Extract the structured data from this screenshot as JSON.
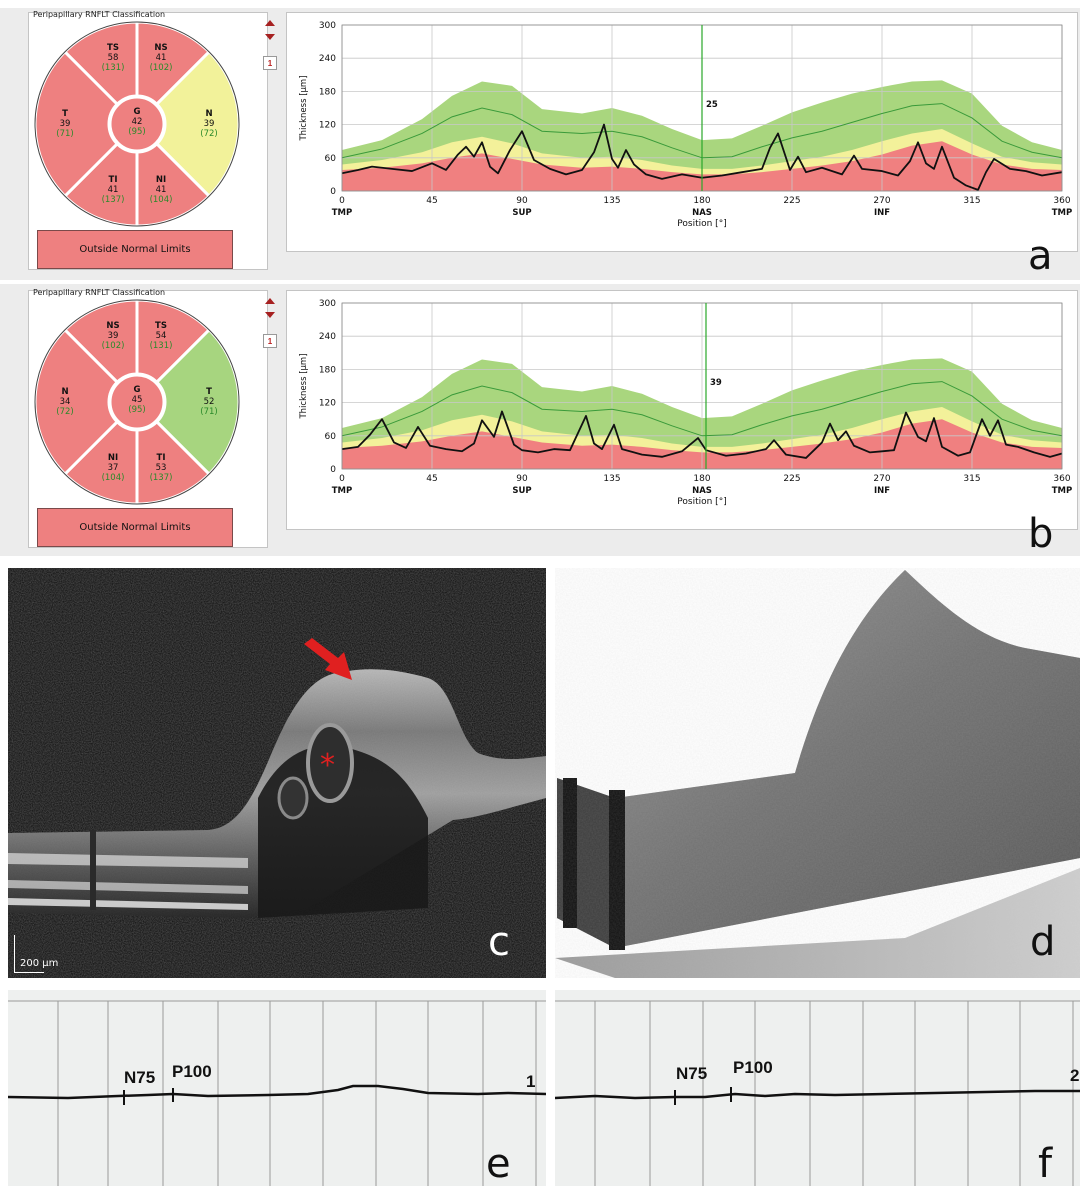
{
  "panels": [
    {
      "id": "a",
      "letter": "a",
      "title": "Peripapillary RNFLT Classification",
      "nav_number": "1",
      "status": "Outside Normal Limits",
      "cursor_label": "25",
      "cursor_position": 180,
      "sectors": {
        "upper_left": {
          "name": "TS",
          "value": "58",
          "normal": "(131)",
          "color": "#ee8080"
        },
        "upper_right": {
          "name": "NS",
          "value": "41",
          "normal": "(102)",
          "color": "#ee8080"
        },
        "left": {
          "name": "T",
          "value": "39",
          "normal": "(71)",
          "color": "#ee8080"
        },
        "right": {
          "name": "N",
          "value": "39",
          "normal": "(72)",
          "color": "#f2f29a"
        },
        "lower_left": {
          "name": "TI",
          "value": "41",
          "normal": "(137)",
          "color": "#ee8080"
        },
        "lower_right": {
          "name": "NI",
          "value": "41",
          "normal": "(104)",
          "color": "#ee8080"
        },
        "center": {
          "name": "G",
          "value": "42",
          "normal": "(95)",
          "color": "#ee8080"
        }
      }
    },
    {
      "id": "b",
      "letter": "b",
      "title": "Peripapillary RNFLT Classification",
      "nav_number": "1",
      "status": "Outside Normal Limits",
      "cursor_label": "39",
      "cursor_position": 182,
      "sectors": {
        "upper_left": {
          "name": "NS",
          "value": "39",
          "normal": "(102)",
          "color": "#ee8080"
        },
        "upper_right": {
          "name": "TS",
          "value": "54",
          "normal": "(131)",
          "color": "#ee8080"
        },
        "left": {
          "name": "N",
          "value": "34",
          "normal": "(72)",
          "color": "#ee8080"
        },
        "right": {
          "name": "T",
          "value": "52",
          "normal": "(71)",
          "color": "#a7d57f"
        },
        "lower_left": {
          "name": "NI",
          "value": "37",
          "normal": "(104)",
          "color": "#ee8080"
        },
        "lower_right": {
          "name": "TI",
          "value": "53",
          "normal": "(137)",
          "color": "#ee8080"
        },
        "center": {
          "name": "G",
          "value": "45",
          "normal": "(95)",
          "color": "#ee8080"
        }
      }
    }
  ],
  "chart_data": [
    {
      "type": "line",
      "panel": "a",
      "ylabel": "Thickness [µm]",
      "xlabel": "Position [°]",
      "x_ticks": [
        0,
        45,
        90,
        135,
        180,
        225,
        270,
        315,
        360
      ],
      "y_ticks": [
        0,
        60,
        120,
        180,
        240,
        300
      ],
      "x_region_labels": [
        {
          "x": 0,
          "label": "TMP"
        },
        {
          "x": 90,
          "label": "SUP"
        },
        {
          "x": 180,
          "label": "NAS"
        },
        {
          "x": 270,
          "label": "INF"
        },
        {
          "x": 360,
          "label": "TMP"
        }
      ],
      "xlim": [
        0,
        360
      ],
      "ylim": [
        0,
        300
      ],
      "normative_x": [
        0,
        20,
        40,
        55,
        70,
        85,
        100,
        120,
        135,
        150,
        165,
        180,
        195,
        210,
        225,
        240,
        255,
        270,
        285,
        300,
        315,
        330,
        345,
        360
      ],
      "band_red_top": [
        38,
        42,
        50,
        60,
        68,
        58,
        48,
        42,
        44,
        40,
        34,
        30,
        30,
        34,
        40,
        46,
        54,
        66,
        82,
        90,
        66,
        48,
        40,
        38
      ],
      "band_yellow_top": [
        48,
        56,
        70,
        88,
        98,
        86,
        68,
        60,
        62,
        56,
        46,
        40,
        40,
        46,
        54,
        62,
        74,
        90,
        104,
        112,
        86,
        62,
        52,
        48
      ],
      "band_green_top": [
        74,
        92,
        130,
        172,
        198,
        190,
        148,
        140,
        150,
        136,
        112,
        92,
        95,
        118,
        142,
        160,
        176,
        188,
        198,
        200,
        176,
        118,
        88,
        74
      ],
      "mean_line": [
        60,
        76,
        104,
        134,
        150,
        138,
        108,
        104,
        108,
        98,
        78,
        60,
        62,
        80,
        96,
        108,
        124,
        140,
        154,
        158,
        132,
        90,
        70,
        60
      ],
      "measured_x": [
        0,
        8,
        15,
        25,
        35,
        45,
        52,
        58,
        62,
        66,
        70,
        74,
        78,
        84,
        90,
        96,
        104,
        112,
        120,
        126,
        131,
        135,
        138,
        142,
        146,
        152,
        160,
        170,
        180,
        190,
        200,
        210,
        214,
        218,
        224,
        228,
        232,
        240,
        250,
        256,
        260,
        270,
        278,
        284,
        288,
        292,
        296,
        300,
        306,
        312,
        318,
        322,
        326,
        334,
        342,
        350,
        360
      ],
      "measured_y": [
        32,
        38,
        44,
        40,
        36,
        50,
        38,
        66,
        80,
        62,
        88,
        44,
        32,
        74,
        108,
        56,
        40,
        30,
        38,
        70,
        120,
        58,
        42,
        74,
        48,
        30,
        22,
        30,
        24,
        28,
        34,
        40,
        78,
        104,
        38,
        62,
        34,
        42,
        30,
        64,
        40,
        36,
        28,
        54,
        88,
        50,
        40,
        80,
        24,
        10,
        2,
        34,
        58,
        40,
        36,
        28,
        34
      ]
    },
    {
      "type": "line",
      "panel": "b",
      "ylabel": "Thickness [µm]",
      "xlabel": "Position [°]",
      "x_ticks": [
        0,
        45,
        90,
        135,
        180,
        225,
        270,
        315,
        360
      ],
      "y_ticks": [
        0,
        60,
        120,
        180,
        240,
        300
      ],
      "x_region_labels": [
        {
          "x": 0,
          "label": "TMP"
        },
        {
          "x": 90,
          "label": "SUP"
        },
        {
          "x": 180,
          "label": "NAS"
        },
        {
          "x": 270,
          "label": "INF"
        },
        {
          "x": 360,
          "label": "TMP"
        }
      ],
      "xlim": [
        0,
        360
      ],
      "ylim": [
        0,
        300
      ],
      "normative_x": [
        0,
        20,
        40,
        55,
        70,
        85,
        100,
        120,
        135,
        150,
        165,
        180,
        195,
        210,
        225,
        240,
        255,
        270,
        285,
        300,
        315,
        330,
        345,
        360
      ],
      "band_red_top": [
        38,
        42,
        50,
        60,
        68,
        58,
        48,
        42,
        44,
        40,
        34,
        30,
        30,
        34,
        40,
        46,
        54,
        66,
        82,
        90,
        66,
        48,
        40,
        38
      ],
      "band_yellow_top": [
        48,
        56,
        70,
        88,
        98,
        86,
        68,
        60,
        62,
        56,
        46,
        40,
        40,
        46,
        54,
        62,
        74,
        90,
        104,
        112,
        86,
        62,
        52,
        48
      ],
      "band_green_top": [
        74,
        92,
        130,
        172,
        198,
        190,
        148,
        140,
        150,
        136,
        112,
        92,
        95,
        118,
        142,
        160,
        176,
        188,
        198,
        200,
        176,
        118,
        88,
        74
      ],
      "mean_line": [
        60,
        76,
        104,
        134,
        150,
        138,
        108,
        104,
        108,
        98,
        78,
        60,
        62,
        80,
        96,
        108,
        124,
        140,
        154,
        158,
        132,
        90,
        70,
        60
      ],
      "measured_x": [
        0,
        8,
        14,
        20,
        26,
        32,
        38,
        44,
        52,
        60,
        66,
        70,
        76,
        80,
        86,
        90,
        98,
        106,
        114,
        122,
        126,
        130,
        136,
        140,
        150,
        160,
        170,
        178,
        182,
        192,
        202,
        212,
        216,
        222,
        232,
        240,
        244,
        248,
        252,
        256,
        264,
        270,
        276,
        282,
        288,
        292,
        296,
        300,
        308,
        314,
        320,
        324,
        328,
        332,
        338,
        346,
        354,
        360
      ],
      "measured_y": [
        36,
        40,
        62,
        90,
        48,
        38,
        76,
        42,
        36,
        32,
        46,
        88,
        58,
        104,
        44,
        34,
        30,
        36,
        34,
        96,
        46,
        36,
        80,
        36,
        26,
        22,
        32,
        56,
        34,
        24,
        28,
        36,
        52,
        26,
        20,
        48,
        82,
        52,
        68,
        42,
        30,
        32,
        34,
        102,
        58,
        50,
        92,
        40,
        24,
        30,
        90,
        60,
        88,
        44,
        40,
        30,
        22,
        28
      ]
    }
  ],
  "oct": {
    "c_letter": "c",
    "d_letter": "d",
    "scalebar_label": "200 µm",
    "arrow_color": "#e02020",
    "asterisk": "*"
  },
  "vep": {
    "e_letter": "e",
    "f_letter": "f",
    "e_labels": {
      "n75": "N75",
      "p100": "P100",
      "channel": "1"
    },
    "f_labels": {
      "n75": "N75",
      "p100": "P100",
      "channel": "2"
    }
  }
}
